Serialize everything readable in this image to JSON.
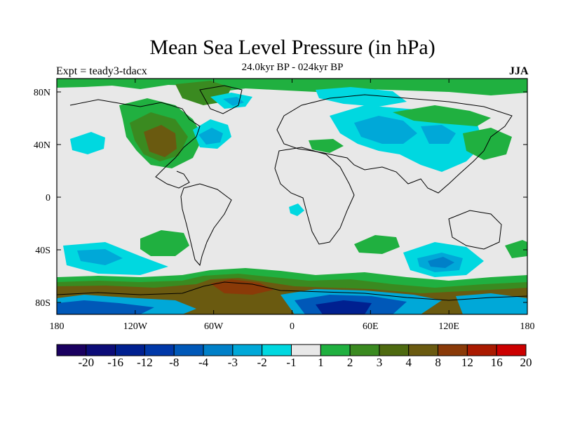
{
  "title": "Mean Sea Level Pressure (in hPa)",
  "experiment": "Expt = teady3-tdacx",
  "period": "24.0kyr BP - 024kyr BP",
  "season": "JJA",
  "lat_labels": [
    "80N",
    "40N",
    "0",
    "40S",
    "80S"
  ],
  "lon_labels": [
    "180",
    "120W",
    "60W",
    "0",
    "60E",
    "120E",
    "180"
  ],
  "colorbar": {
    "labels": [
      "-20",
      "-16",
      "-12",
      "-8",
      "-4",
      "-3",
      "-2",
      "-1",
      "1",
      "2",
      "3",
      "4",
      "8",
      "12",
      "16",
      "20"
    ],
    "colors": [
      "#1a0060",
      "#0c0c78",
      "#002090",
      "#0038a8",
      "#0058b8",
      "#0080c8",
      "#00a8d8",
      "#00d8e0",
      "#e8e8e8",
      "#20b040",
      "#3a8a20",
      "#4e6a10",
      "#6a5a10",
      "#8a3a08",
      "#aa1a00",
      "#cc0000"
    ]
  }
}
